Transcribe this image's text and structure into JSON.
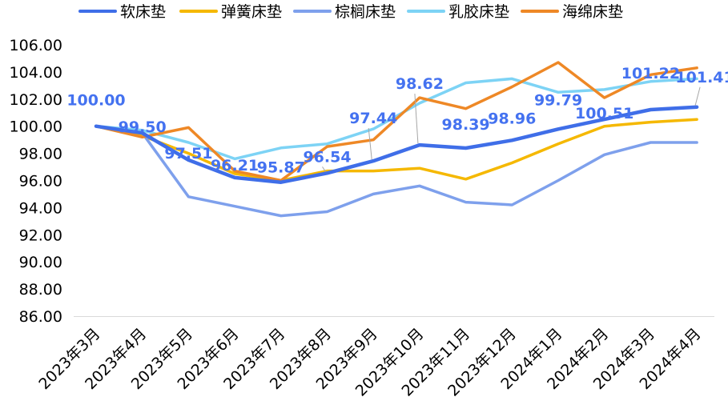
{
  "chart_data": {
    "type": "line",
    "title": "",
    "xlabel": "",
    "ylabel": "",
    "ylim": [
      86,
      106
    ],
    "yticks": [
      "86.00",
      "88.00",
      "90.00",
      "92.00",
      "94.00",
      "96.00",
      "98.00",
      "100.00",
      "102.00",
      "104.00",
      "106.00"
    ],
    "categories": [
      "2023年3月",
      "2023年4月",
      "2023年5月",
      "2023年6月",
      "2023年7月",
      "2023年8月",
      "2023年9月",
      "2023年10月",
      "2023年11月",
      "2023年12月",
      "2024年1月",
      "2024年2月",
      "2024年3月",
      "2024年4月"
    ],
    "legend_position": "top",
    "grid": false,
    "series": [
      {
        "name": "软床垫",
        "color": "#3f6ee8",
        "values": [
          100.0,
          99.5,
          97.51,
          96.21,
          95.87,
          96.54,
          97.44,
          98.62,
          98.39,
          98.96,
          99.79,
          100.51,
          101.22,
          101.41
        ],
        "labels": [
          "100.00",
          "99.50",
          "97.51",
          "96.21",
          "95.87",
          "96.54",
          "97.44",
          "98.62",
          "98.39",
          "98.96",
          "99.79",
          "100.51",
          "101.22",
          "101.41"
        ]
      },
      {
        "name": "弹簧床垫",
        "color": "#f5b800",
        "values": [
          100.0,
          99.3,
          98.0,
          96.5,
          96.0,
          96.7,
          96.7,
          96.9,
          96.1,
          97.3,
          98.7,
          100.0,
          100.3,
          100.5
        ]
      },
      {
        "name": "棕榈床垫",
        "color": "#7ea0ec",
        "values": [
          100.0,
          99.5,
          94.8,
          94.1,
          93.4,
          93.7,
          95.0,
          95.6,
          94.4,
          94.2,
          96.0,
          97.9,
          98.8,
          98.8
        ]
      },
      {
        "name": "乳胶床垫",
        "color": "#7dd3f5",
        "values": [
          100.0,
          99.7,
          98.8,
          97.6,
          98.4,
          98.7,
          99.8,
          101.7,
          103.2,
          103.5,
          102.5,
          102.7,
          103.3,
          103.5
        ]
      },
      {
        "name": "海绵床垫",
        "color": "#ee8826",
        "values": [
          100.0,
          99.2,
          99.9,
          96.7,
          96.0,
          98.5,
          99.0,
          102.1,
          101.3,
          102.9,
          104.7,
          102.1,
          103.8,
          104.3
        ]
      }
    ]
  }
}
